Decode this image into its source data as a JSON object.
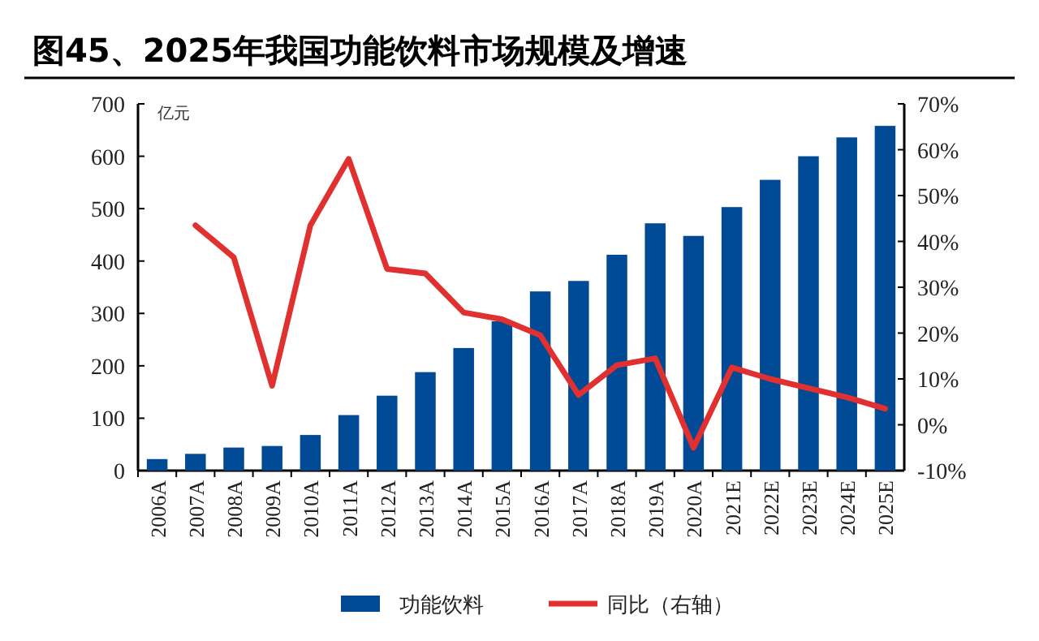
{
  "chart_data": {
    "type": "bar",
    "title": "图45、2025年我国功能饮料市场规模及增速",
    "ylabel": "亿元",
    "categories": [
      "2006A",
      "2007A",
      "2008A",
      "2009A",
      "2010A",
      "2011A",
      "2012A",
      "2013A",
      "2014A",
      "2015A",
      "2016A",
      "2017A",
      "2018A",
      "2019A",
      "2020A",
      "2021E",
      "2022E",
      "2023E",
      "2024E",
      "2025E"
    ],
    "series": [
      {
        "name": "功能饮料",
        "color": "#004a96",
        "values": [
          22,
          32,
          44,
          47,
          68,
          106,
          143,
          188,
          234,
          285,
          342,
          362,
          412,
          472,
          448,
          503,
          555,
          600,
          636,
          658
        ]
      },
      {
        "name": "同比（右轴）",
        "type": "line",
        "axis": "y2",
        "color": "#e03030",
        "values": [
          null,
          43.5,
          36.5,
          8.5,
          43.5,
          58,
          34,
          33,
          24.5,
          23,
          19.5,
          6.5,
          13,
          14.5,
          -5,
          12.5,
          10,
          8,
          6,
          3.5
        ]
      }
    ],
    "ylim": [
      0,
      700
    ],
    "yticks": [
      0,
      100,
      200,
      300,
      400,
      500,
      600,
      700
    ],
    "y2lim": [
      -10,
      70
    ],
    "y2ticks": [
      {
        "value": -10,
        "label": "-10%"
      },
      {
        "value": 0,
        "label": "0%"
      },
      {
        "value": 10,
        "label": "10%"
      },
      {
        "value": 20,
        "label": "20%"
      },
      {
        "value": 30,
        "label": "30%"
      },
      {
        "value": 40,
        "label": "40%"
      },
      {
        "value": 50,
        "label": "50%"
      },
      {
        "value": 60,
        "label": "60%"
      },
      {
        "value": 70,
        "label": "70%"
      }
    ],
    "legend": "bottom",
    "grid": false
  }
}
